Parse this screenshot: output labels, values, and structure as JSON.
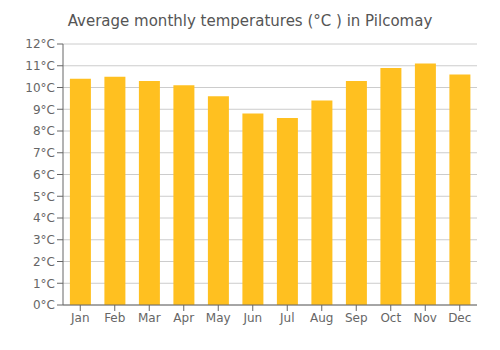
{
  "chart_data": {
    "type": "bar",
    "title": "Average monthly temperatures (°C ) in Pilcomay",
    "categories": [
      "Jan",
      "Feb",
      "Mar",
      "Apr",
      "May",
      "Jun",
      "Jul",
      "Aug",
      "Sep",
      "Oct",
      "Nov",
      "Dec"
    ],
    "values": [
      10.4,
      10.5,
      10.3,
      10.1,
      9.6,
      8.8,
      8.6,
      9.4,
      10.3,
      10.9,
      11.1,
      10.6
    ],
    "color": "#FFC020",
    "ylim": [
      0,
      12
    ],
    "yticks": [
      {
        "value": 0,
        "label": "0°C"
      },
      {
        "value": 1,
        "label": "1°C"
      },
      {
        "value": 2,
        "label": "2°C"
      },
      {
        "value": 3,
        "label": "3°C"
      },
      {
        "value": 4,
        "label": "4°C"
      },
      {
        "value": 5,
        "label": "5°C"
      },
      {
        "value": 6,
        "label": "6°C"
      },
      {
        "value": 7,
        "label": "7°C"
      },
      {
        "value": 8,
        "label": "8°C"
      },
      {
        "value": 9,
        "label": "9°C"
      },
      {
        "value": 10,
        "label": "10°C"
      },
      {
        "value": 11,
        "label": "11°C"
      },
      {
        "value": 12,
        "label": "12°C"
      }
    ],
    "grid": true
  }
}
